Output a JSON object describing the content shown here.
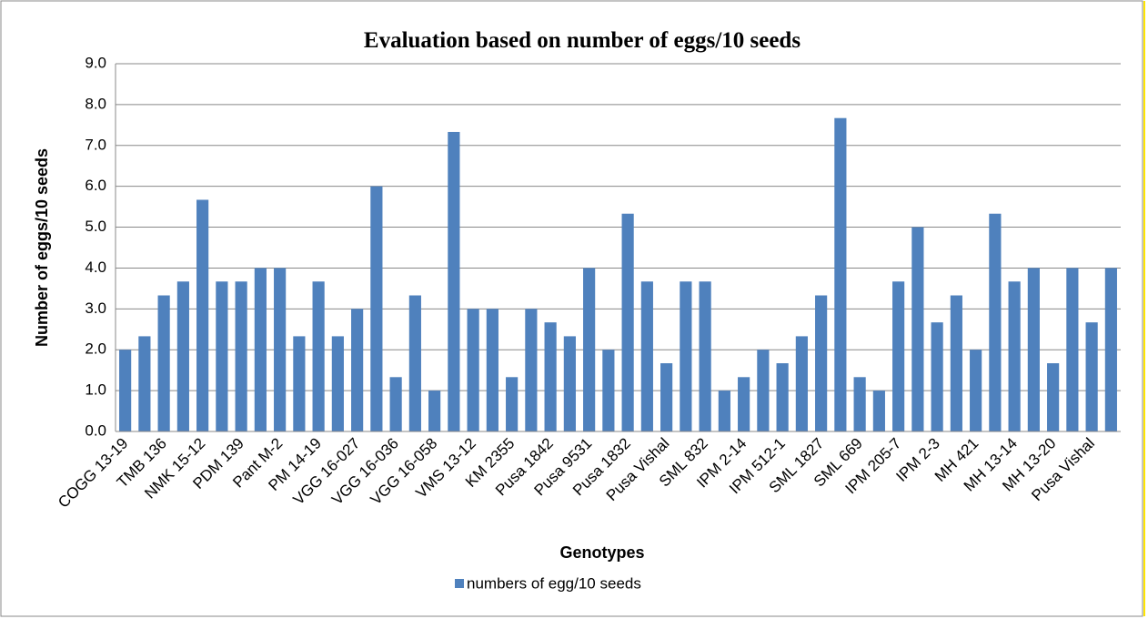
{
  "chart_data": {
    "type": "bar",
    "title": "Evaluation based on number of eggs/10 seeds",
    "x_label": "Genotypes",
    "y_label": "Number of eggs/10 seeds",
    "categories": [
      "COGG 13-19",
      null,
      "TMB 136",
      null,
      "NMK 15-12",
      null,
      "PDM 139",
      null,
      "Pant M-2",
      null,
      "PM 14-19",
      null,
      "VGG 16-027",
      null,
      "VGG 16-036",
      null,
      "VGG 16-058",
      null,
      "VMS 13-12",
      null,
      "KM 2355",
      null,
      "Pusa 1842",
      null,
      "Pusa 9531",
      null,
      "Pusa 1832",
      null,
      "Pusa Vishal",
      null,
      "SML 832",
      null,
      "IPM 2-14",
      null,
      "IPM 512-1",
      null,
      "SML 1827",
      null,
      "SML 669",
      null,
      "IPM 205-7",
      null,
      "IPM 2-3",
      null,
      "MH 421",
      null,
      "MH 13-14",
      null,
      "MH 13-20",
      null,
      "Pusa Vishal",
      null
    ],
    "series": [
      {
        "name": "numbers of egg/10 seeds",
        "color": "#4f81bd",
        "values": [
          2.0,
          2.33,
          3.33,
          3.67,
          5.67,
          3.67,
          3.67,
          4.0,
          4.0,
          2.33,
          3.67,
          2.33,
          3.0,
          6.0,
          1.33,
          3.33,
          1.0,
          7.33,
          3.0,
          3.0,
          1.33,
          3.0,
          2.67,
          2.33,
          4.0,
          2.0,
          5.33,
          3.67,
          1.67,
          3.67,
          3.67,
          1.0,
          1.33,
          2.0,
          1.67,
          2.33,
          3.33,
          7.67,
          1.33,
          1.0,
          3.67,
          5.0,
          2.67,
          3.33,
          2.0,
          5.33,
          3.67,
          4.0,
          1.67,
          4.0,
          2.67,
          4.0
        ]
      }
    ],
    "ylim": [
      0,
      9
    ],
    "yticks": [
      {
        "value": 0,
        "label": "0.0"
      },
      {
        "value": 1,
        "label": "1.0"
      },
      {
        "value": 2,
        "label": "2.0"
      },
      {
        "value": 3,
        "label": "3.0"
      },
      {
        "value": 4,
        "label": "4.0"
      },
      {
        "value": 5,
        "label": "5.0"
      },
      {
        "value": 6,
        "label": "6.0"
      },
      {
        "value": 7,
        "label": "7.0"
      },
      {
        "value": 8,
        "label": "8.0"
      },
      {
        "value": 9,
        "label": "9.0"
      }
    ],
    "grid": true,
    "legend": "bottom"
  }
}
